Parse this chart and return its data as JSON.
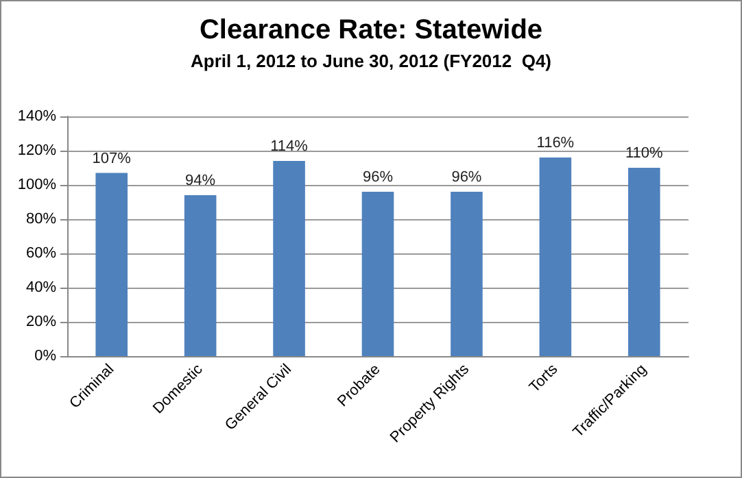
{
  "chart_data": {
    "type": "bar",
    "title": "Clearance Rate: Statewide",
    "subtitle": "April 1, 2012 to June 30, 2012 (FY2012  Q4)",
    "categories": [
      "Criminal",
      "Domestic",
      "General Civil",
      "Probate",
      "Property Rights",
      "Torts",
      "Traffic/Parking"
    ],
    "values": [
      107,
      94,
      114,
      96,
      96,
      116,
      110
    ],
    "value_labels": [
      "107%",
      "94%",
      "114%",
      "96%",
      "96%",
      "116%",
      "110%"
    ],
    "color": "#4f81bd",
    "ylim": [
      0,
      140
    ],
    "yticks": [
      {
        "value": 0,
        "label": "0%"
      },
      {
        "value": 20,
        "label": "20%"
      },
      {
        "value": 40,
        "label": "40%"
      },
      {
        "value": 60,
        "label": "60%"
      },
      {
        "value": 80,
        "label": "80%"
      },
      {
        "value": 100,
        "label": "100%"
      },
      {
        "value": 120,
        "label": "120%"
      },
      {
        "value": 140,
        "label": "140%"
      }
    ],
    "grid": "y"
  }
}
